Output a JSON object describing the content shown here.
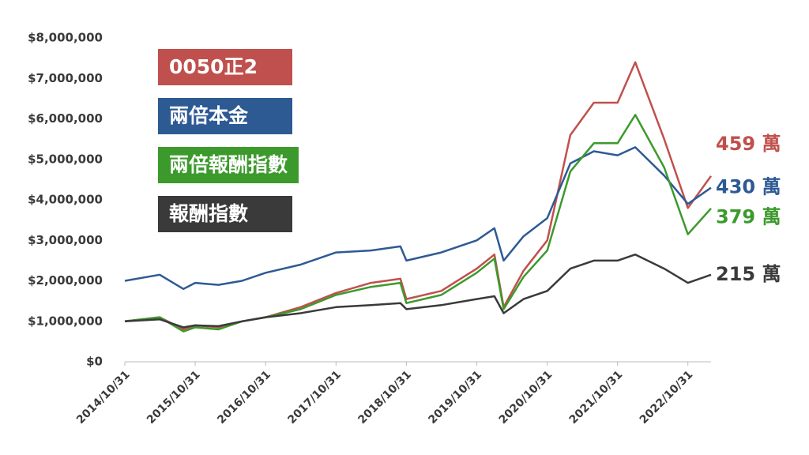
{
  "chart_data": {
    "type": "line",
    "x": [
      "2014/10/31",
      "2015/04/30",
      "2015/08/31",
      "2015/10/31",
      "2016/02/29",
      "2016/06/30",
      "2016/10/31",
      "2017/04/30",
      "2017/10/31",
      "2018/04/30",
      "2018/09/30",
      "2018/10/31",
      "2019/04/30",
      "2019/10/31",
      "2020/01/31",
      "2020/03/19",
      "2020/06/30",
      "2020/10/31",
      "2021/02/28",
      "2021/06/30",
      "2021/10/31",
      "2022/01/31",
      "2022/06/30",
      "2022/10/31",
      "2023/02/28"
    ],
    "xlim": [
      "2014/10/31",
      "2023/02/28"
    ],
    "xticks": [
      "2014/10/31",
      "2015/10/31",
      "2016/10/31",
      "2017/10/31",
      "2018/10/31",
      "2019/10/31",
      "2020/10/31",
      "2021/10/31",
      "2022/10/31"
    ],
    "ylim": [
      0,
      8000000
    ],
    "yticks": [
      {
        "value": 0,
        "label": "$0"
      },
      {
        "value": 1000000,
        "label": "$1,000,000"
      },
      {
        "value": 2000000,
        "label": "$2,000,000"
      },
      {
        "value": 3000000,
        "label": "$3,000,000"
      },
      {
        "value": 4000000,
        "label": "$4,000,000"
      },
      {
        "value": 5000000,
        "label": "$5,000,000"
      },
      {
        "value": 6000000,
        "label": "$6,000,000"
      },
      {
        "value": 7000000,
        "label": "$7,000,000"
      },
      {
        "value": 8000000,
        "label": "$8,000,000"
      }
    ],
    "grid": false,
    "legend": "top-left",
    "series": [
      {
        "name": "0050正2",
        "color": "#c0504d",
        "last_label": "459 萬",
        "values": [
          1000000,
          1100000,
          800000,
          900000,
          850000,
          1000000,
          1100000,
          1350000,
          1700000,
          1950000,
          2050000,
          1550000,
          1750000,
          2300000,
          2650000,
          1350000,
          2250000,
          3000000,
          5600000,
          6400000,
          6400000,
          7400000,
          5500000,
          3800000,
          4590000
        ]
      },
      {
        "name": "兩倍本金",
        "color": "#2e5a94",
        "last_label": "430 萬",
        "values": [
          2000000,
          2150000,
          1800000,
          1950000,
          1900000,
          2000000,
          2200000,
          2400000,
          2700000,
          2750000,
          2850000,
          2500000,
          2700000,
          3000000,
          3300000,
          2500000,
          3100000,
          3550000,
          4900000,
          5200000,
          5100000,
          5300000,
          4600000,
          3900000,
          4300000
        ]
      },
      {
        "name": "兩倍報酬指數",
        "color": "#3c9a2c",
        "last_label": "379 萬",
        "values": [
          1000000,
          1100000,
          750000,
          850000,
          800000,
          1000000,
          1100000,
          1300000,
          1650000,
          1850000,
          1950000,
          1450000,
          1650000,
          2200000,
          2550000,
          1300000,
          2100000,
          2750000,
          4700000,
          5400000,
          5400000,
          6100000,
          4800000,
          3150000,
          3790000
        ]
      },
      {
        "name": "報酬指數",
        "color": "#3a3a3a",
        "last_label": "215 萬",
        "values": [
          1000000,
          1050000,
          850000,
          900000,
          880000,
          1000000,
          1100000,
          1200000,
          1350000,
          1400000,
          1450000,
          1300000,
          1400000,
          1550000,
          1620000,
          1200000,
          1550000,
          1750000,
          2300000,
          2500000,
          2500000,
          2650000,
          2300000,
          1950000,
          2150000
        ]
      }
    ]
  }
}
